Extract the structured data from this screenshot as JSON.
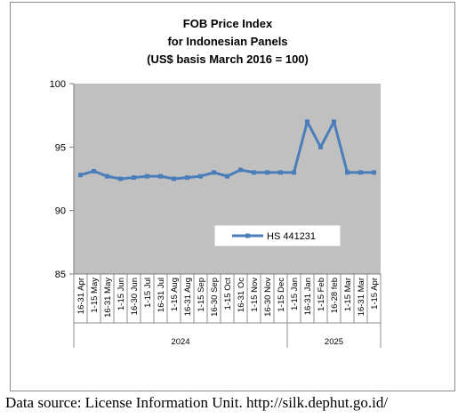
{
  "chart_data": {
    "type": "line",
    "title": [
      "FOB Price Index",
      "for Indonesian Panels",
      "(US$ basis March 2016 = 100)"
    ],
    "xlabel": "",
    "ylabel": "",
    "ylim": [
      85,
      100
    ],
    "yticks": [
      85,
      90,
      95,
      100
    ],
    "grid": false,
    "legend_position": "center-right",
    "categories": [
      "16-31 Apr",
      "1-15 May",
      "16-31 May",
      "1-15 Jun",
      "16-30 Jun",
      "1-15 Jul",
      "16-31 Jul",
      "1-15 Aug",
      "16-31 Aug",
      "1-15 Sep",
      "16-30 Sep",
      "1-15 Oct",
      "16-31 Oc",
      "1-15 Nov",
      "16-30 Nov",
      "1-15 Dec",
      "1-15 Jan",
      "16-31 Jan",
      "1-15 Feb",
      "16-28 feb",
      "1-15 Mar",
      "16-31 Mar",
      "1-15 Apr"
    ],
    "year_groups": [
      {
        "label": "2024",
        "start": 0,
        "end": 15
      },
      {
        "label": "2025",
        "start": 16,
        "end": 22
      }
    ],
    "series": [
      {
        "name": "HS 441231",
        "color": "#4a7ebb",
        "values": [
          92.8,
          93.1,
          92.7,
          92.5,
          92.6,
          92.7,
          92.7,
          92.5,
          92.6,
          92.7,
          93.0,
          92.7,
          93.2,
          93.0,
          93.0,
          93.0,
          93.0,
          97.0,
          95.0,
          97.0,
          93.0,
          93.0,
          93.0
        ]
      }
    ],
    "plot_bg": "#c0c0c0"
  },
  "footer": {
    "source": "Data source: License Information Unit. http://silk.dephut.go.id/"
  }
}
